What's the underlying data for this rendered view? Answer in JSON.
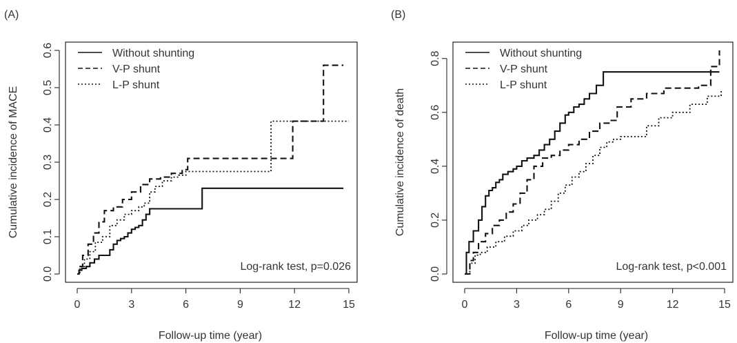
{
  "chart_data": [
    {
      "type": "line",
      "step": true,
      "panel_label": "(A)",
      "title": "",
      "xlabel": "Follow-up time (year)",
      "ylabel": "Cumulative incidence of MACE",
      "xlim": [
        0,
        15
      ],
      "ylim": [
        0,
        0.6
      ],
      "x_ticks": [
        0,
        3,
        6,
        9,
        12,
        15
      ],
      "y_ticks": [
        0.0,
        0.1,
        0.2,
        0.3,
        0.4,
        0.5,
        0.6
      ],
      "y_tick_labels": [
        "0.0",
        "0.1",
        "0.2",
        "0.3",
        "0.4",
        "0.5",
        "0.6"
      ],
      "grid": false,
      "legend_position": "top-left",
      "annotation": "Log-rank test, p=0.026",
      "series": [
        {
          "name": "Without shunting",
          "line_style": "solid",
          "x": [
            0,
            0.1,
            0.25,
            0.5,
            0.7,
            0.95,
            1.2,
            1.5,
            1.8,
            2.0,
            2.2,
            2.4,
            2.6,
            2.8,
            3.0,
            3.2,
            3.4,
            3.6,
            3.8,
            4.0,
            6.9,
            14.7
          ],
          "y": [
            0.0,
            0.01,
            0.015,
            0.02,
            0.03,
            0.04,
            0.05,
            0.05,
            0.065,
            0.08,
            0.09,
            0.095,
            0.1,
            0.11,
            0.12,
            0.125,
            0.13,
            0.145,
            0.16,
            0.175,
            0.23,
            0.23
          ]
        },
        {
          "name": "V-P shunt",
          "line_style": "dashed",
          "x": [
            0,
            0.1,
            0.3,
            0.6,
            0.9,
            1.2,
            1.5,
            2.0,
            2.5,
            3.0,
            3.5,
            4.0,
            4.6,
            5.2,
            5.8,
            6.1,
            10.8,
            11.9,
            13.6,
            14.7
          ],
          "y": [
            0.0,
            0.02,
            0.05,
            0.08,
            0.11,
            0.14,
            0.17,
            0.18,
            0.2,
            0.22,
            0.24,
            0.255,
            0.26,
            0.27,
            0.28,
            0.31,
            0.31,
            0.41,
            0.56,
            0.56
          ]
        },
        {
          "name": "L-P shunt",
          "line_style": "dotted",
          "x": [
            0,
            0.15,
            0.4,
            0.7,
            1.0,
            1.4,
            1.8,
            2.2,
            2.6,
            3.0,
            3.4,
            3.7,
            4.0,
            4.3,
            4.7,
            5.2,
            5.6,
            6.0,
            10.7,
            11.4,
            15.0
          ],
          "y": [
            0.0,
            0.02,
            0.04,
            0.06,
            0.085,
            0.1,
            0.13,
            0.145,
            0.16,
            0.17,
            0.18,
            0.19,
            0.22,
            0.235,
            0.25,
            0.26,
            0.265,
            0.275,
            0.41,
            0.41,
            0.41
          ]
        }
      ]
    },
    {
      "type": "line",
      "step": true,
      "panel_label": "(B)",
      "title": "",
      "xlabel": "Follow-up time (year)",
      "ylabel": "Cumulative incidence of death",
      "xlim": [
        0,
        15
      ],
      "ylim": [
        0,
        0.83
      ],
      "x_ticks": [
        0,
        3,
        6,
        9,
        12,
        15
      ],
      "y_ticks": [
        0.0,
        0.2,
        0.4,
        0.6,
        0.8
      ],
      "y_tick_labels": [
        "0.0",
        "0.2",
        "0.4",
        "0.6",
        "0.8"
      ],
      "grid": false,
      "legend_position": "top-left",
      "annotation": "Log-rank test, p<0.001",
      "series": [
        {
          "name": "Without shunting",
          "line_style": "solid",
          "x": [
            0,
            0.1,
            0.25,
            0.5,
            0.8,
            1.0,
            1.2,
            1.4,
            1.6,
            1.8,
            2.0,
            2.2,
            2.5,
            2.8,
            3.0,
            3.3,
            3.6,
            4.0,
            4.3,
            4.6,
            4.9,
            5.2,
            5.5,
            5.8,
            6.0,
            6.3,
            6.6,
            6.9,
            7.2,
            7.6,
            8.0,
            14.7
          ],
          "y": [
            0.0,
            0.08,
            0.12,
            0.16,
            0.2,
            0.25,
            0.29,
            0.31,
            0.32,
            0.34,
            0.35,
            0.37,
            0.38,
            0.39,
            0.4,
            0.42,
            0.43,
            0.44,
            0.46,
            0.48,
            0.5,
            0.53,
            0.56,
            0.59,
            0.6,
            0.62,
            0.63,
            0.65,
            0.67,
            0.7,
            0.75,
            0.75
          ]
        },
        {
          "name": "V-P shunt",
          "line_style": "dashed",
          "x": [
            0,
            0.3,
            0.5,
            0.8,
            1.2,
            1.6,
            2.0,
            2.4,
            2.8,
            3.2,
            3.6,
            4.0,
            4.5,
            5.0,
            5.5,
            6.0,
            6.6,
            7.2,
            7.8,
            8.4,
            8.8,
            9.6,
            10.5,
            11.5,
            13.5,
            14.2,
            14.7
          ],
          "y": [
            0.0,
            0.05,
            0.08,
            0.12,
            0.15,
            0.18,
            0.2,
            0.23,
            0.26,
            0.3,
            0.35,
            0.4,
            0.43,
            0.44,
            0.46,
            0.48,
            0.5,
            0.53,
            0.56,
            0.57,
            0.62,
            0.65,
            0.67,
            0.69,
            0.7,
            0.77,
            0.83
          ]
        },
        {
          "name": "L-P shunt",
          "line_style": "dotted",
          "x": [
            0,
            0.3,
            0.6,
            0.9,
            1.3,
            1.8,
            2.3,
            2.8,
            3.3,
            3.7,
            4.2,
            4.6,
            5.0,
            5.4,
            5.8,
            6.2,
            6.6,
            7.0,
            7.4,
            7.8,
            8.2,
            8.6,
            9.0,
            10.5,
            11.2,
            12.0,
            13.0,
            14.0,
            14.8
          ],
          "y": [
            0.0,
            0.04,
            0.07,
            0.08,
            0.1,
            0.12,
            0.14,
            0.16,
            0.18,
            0.2,
            0.22,
            0.24,
            0.27,
            0.3,
            0.33,
            0.36,
            0.38,
            0.41,
            0.44,
            0.47,
            0.49,
            0.5,
            0.51,
            0.55,
            0.58,
            0.6,
            0.63,
            0.66,
            0.68
          ]
        }
      ]
    }
  ]
}
